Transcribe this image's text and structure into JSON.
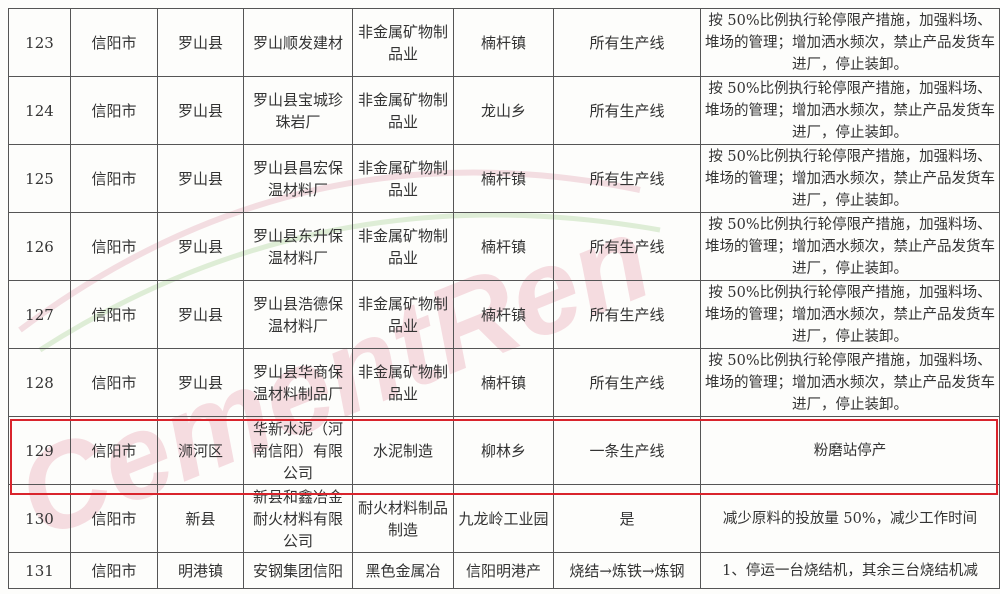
{
  "watermark": "CementRen.com",
  "colors": {
    "highlight": "#d9242c",
    "watermark": "#e8a0b0"
  },
  "rows": [
    {
      "no": "123",
      "city": "信阳市",
      "county": "罗山县",
      "company": "罗山顺发建材",
      "industry": "非金属矿物制品业",
      "town": "楠杆镇",
      "line": "所有生产线",
      "measure": "按 50%比例执行轮停限产措施，加强料场、堆场的管理；增加洒水频次，禁止产品发货车进厂，停止装卸。"
    },
    {
      "no": "124",
      "city": "信阳市",
      "county": "罗山县",
      "company": "罗山县宝城珍珠岩厂",
      "industry": "非金属矿物制品业",
      "town": "龙山乡",
      "line": "所有生产线",
      "measure": "按 50%比例执行轮停限产措施，加强料场、堆场的管理；增加洒水频次，禁止产品发货车进厂，停止装卸。"
    },
    {
      "no": "125",
      "city": "信阳市",
      "county": "罗山县",
      "company": "罗山县昌宏保温材料厂",
      "industry": "非金属矿物制品业",
      "town": "楠杆镇",
      "line": "所有生产线",
      "measure": "按 50%比例执行轮停限产措施，加强料场、堆场的管理；增加洒水频次，禁止产品发货车进厂，停止装卸。"
    },
    {
      "no": "126",
      "city": "信阳市",
      "county": "罗山县",
      "company": "罗山县东升保温材料厂",
      "industry": "非金属矿物制品业",
      "town": "楠杆镇",
      "line": "所有生产线",
      "measure": "按 50%比例执行轮停限产措施，加强料场、堆场的管理；增加洒水频次，禁止产品发货车进厂，停止装卸。"
    },
    {
      "no": "127",
      "city": "信阳市",
      "county": "罗山县",
      "company": "罗山县浩德保温材料厂",
      "industry": "非金属矿物制品业",
      "town": "楠杆镇",
      "line": "所有生产线",
      "measure": "按 50%比例执行轮停限产措施，加强料场、堆场的管理；增加洒水频次，禁止产品发货车进厂，停止装卸。"
    },
    {
      "no": "128",
      "city": "信阳市",
      "county": "罗山县",
      "company": "罗山县华商保温材料制品厂",
      "industry": "非金属矿物制品业",
      "town": "楠杆镇",
      "line": "所有生产线",
      "measure": "按 50%比例执行轮停限产措施，加强料场、堆场的管理；增加洒水频次，禁止产品发货车进厂，停止装卸。"
    },
    {
      "no": "129",
      "city": "信阳市",
      "county": "浉河区",
      "company": "华新水泥（河南信阳）有限公司",
      "industry": "水泥制造",
      "town": "柳林乡",
      "line": "一条生产线",
      "measure": "粉磨站停产"
    },
    {
      "no": "130",
      "city": "信阳市",
      "county": "新县",
      "company": "新县和鑫冶金耐火材料有限公司",
      "industry": "耐火材料制品制造",
      "town": "九龙岭工业园",
      "line": "是",
      "measure": "减少原料的投放量 50%，减少工作时间"
    },
    {
      "no": "131",
      "city": "信阳市",
      "county": "明港镇",
      "company": "安钢集团信阳",
      "industry": "黑色金属冶",
      "town": "信阳明港产",
      "line": "烧结→炼铁→炼钢",
      "measure": "1、停运一台烧结机，其余三台烧结机减"
    }
  ]
}
